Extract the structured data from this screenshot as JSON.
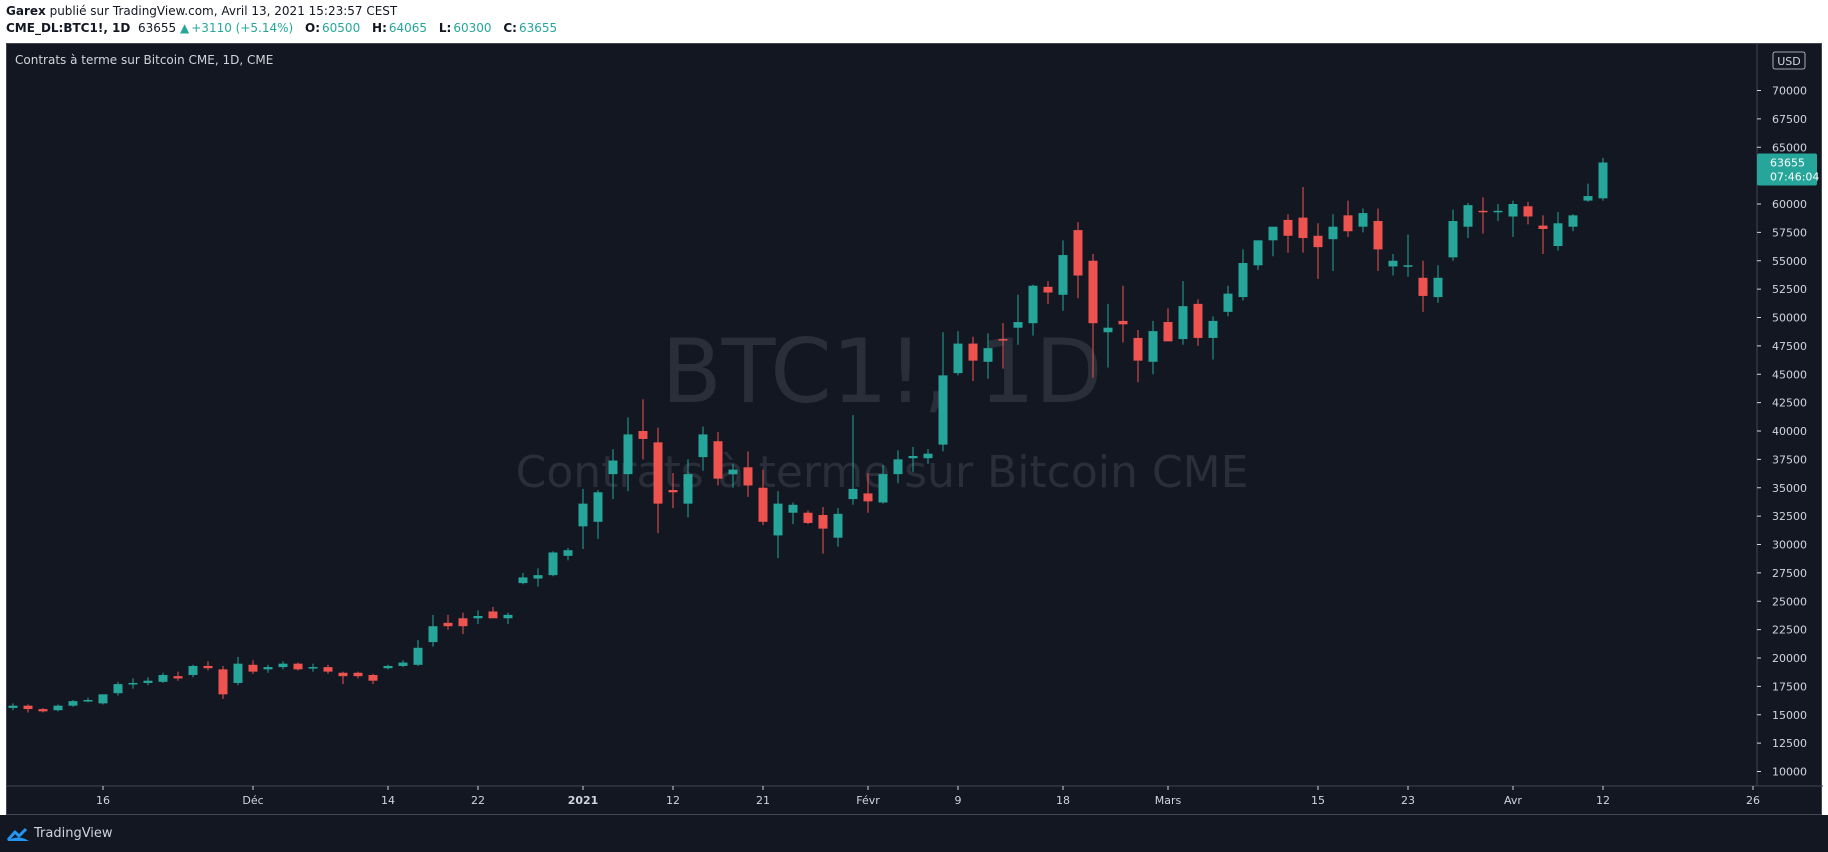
{
  "header": {
    "author": "Garex",
    "published_text": "publié sur TradingView.com, Avril 13, 2021 15:23:57 CEST",
    "symbol": "CME_DL:BTC1!, 1D",
    "last": "63655",
    "change_arrow": "▲",
    "change": "+3110 (+5.14%)",
    "o_label": "O:",
    "o_value": "60500",
    "h_label": "H:",
    "h_value": "64065",
    "l_label": "L:",
    "l_value": "60300",
    "c_label": "C:",
    "c_value": "63655"
  },
  "legend": {
    "title": "Contrats à terme sur Bitcoin CME, 1D, CME"
  },
  "watermark": {
    "symbol": "BTC1!, 1D",
    "description": "Contrats à terme sur Bitcoin CME"
  },
  "price_axis": {
    "currency": "USD",
    "last_price": "63655",
    "countdown": "07:46:04"
  },
  "footer": {
    "brand": "TradingView"
  },
  "colors": {
    "up": "#26a69a",
    "down": "#ef5350",
    "background": "#131722",
    "axis_text": "#d1d4dc",
    "watermark": "#2a2e39"
  },
  "chart_data": {
    "type": "candlestick",
    "ylim": [
      8000,
      72000
    ],
    "y_ticks": [
      10000,
      12500,
      15000,
      17500,
      20000,
      22500,
      25000,
      27500,
      30000,
      32500,
      35000,
      37500,
      40000,
      42500,
      45000,
      47500,
      50000,
      52500,
      55000,
      57500,
      60000,
      62500,
      65000,
      67500,
      70000
    ],
    "x_ticks": [
      {
        "idx": 6,
        "label": "16"
      },
      {
        "idx": 16,
        "label": "Déc"
      },
      {
        "idx": 25,
        "label": "14"
      },
      {
        "idx": 31,
        "label": "22"
      },
      {
        "idx": 38,
        "label": "2021"
      },
      {
        "idx": 44,
        "label": "12"
      },
      {
        "idx": 50,
        "label": "21"
      },
      {
        "idx": 57,
        "label": "Févr"
      },
      {
        "idx": 63,
        "label": "9"
      },
      {
        "idx": 70,
        "label": "18"
      },
      {
        "idx": 77,
        "label": "Mars"
      },
      {
        "idx": 87,
        "label": "15"
      },
      {
        "idx": 93,
        "label": "23"
      },
      {
        "idx": 100,
        "label": "Avr"
      },
      {
        "idx": 106,
        "label": "12"
      },
      {
        "idx": 116,
        "label": "26"
      }
    ],
    "candles": [
      [
        0,
        15600,
        16000,
        15400,
        15800
      ],
      [
        1,
        15800,
        15900,
        15200,
        15500
      ],
      [
        2,
        15500,
        15600,
        15200,
        15300
      ],
      [
        3,
        15400,
        15900,
        15300,
        15800
      ],
      [
        4,
        15800,
        16300,
        15700,
        16200
      ],
      [
        5,
        16200,
        16500,
        16100,
        16300
      ],
      [
        6,
        16000,
        16800,
        15900,
        16800
      ],
      [
        7,
        16900,
        17900,
        16700,
        17700
      ],
      [
        8,
        17700,
        18200,
        17300,
        17800
      ],
      [
        9,
        17800,
        18300,
        17600,
        18000
      ],
      [
        10,
        17900,
        18700,
        17800,
        18500
      ],
      [
        11,
        18400,
        18800,
        18000,
        18200
      ],
      [
        12,
        18500,
        19400,
        18300,
        19300
      ],
      [
        13,
        19300,
        19700,
        18900,
        19100
      ],
      [
        14,
        19000,
        19300,
        16400,
        16800
      ],
      [
        15,
        17800,
        20100,
        17600,
        19500
      ],
      [
        16,
        19400,
        19800,
        18600,
        18800
      ],
      [
        17,
        19000,
        19400,
        18700,
        19200
      ],
      [
        18,
        19200,
        19700,
        19000,
        19500
      ],
      [
        19,
        19500,
        19600,
        18900,
        19000
      ],
      [
        20,
        19100,
        19500,
        18800,
        19200
      ],
      [
        21,
        19200,
        19400,
        18600,
        18800
      ],
      [
        22,
        18700,
        18800,
        17700,
        18400
      ],
      [
        23,
        18700,
        18800,
        18200,
        18400
      ],
      [
        24,
        18500,
        18600,
        17700,
        18000
      ],
      [
        25,
        19100,
        19400,
        19000,
        19300
      ],
      [
        26,
        19300,
        19800,
        19200,
        19600
      ],
      [
        27,
        19400,
        21600,
        19300,
        20900
      ],
      [
        28,
        21400,
        23800,
        21000,
        22800
      ],
      [
        29,
        23100,
        23800,
        22500,
        22800
      ],
      [
        30,
        23500,
        24000,
        22100,
        22800
      ],
      [
        31,
        23500,
        24200,
        23000,
        23700
      ],
      [
        32,
        24100,
        24500,
        23600,
        23500
      ],
      [
        33,
        23500,
        24000,
        23000,
        23800
      ],
      [
        34,
        26600,
        27500,
        26500,
        27100
      ],
      [
        35,
        27000,
        27900,
        26300,
        27300
      ],
      [
        36,
        27300,
        29400,
        27200,
        29300
      ],
      [
        37,
        29000,
        29700,
        28600,
        29500
      ],
      [
        38,
        31600,
        34900,
        29600,
        33600
      ],
      [
        39,
        32000,
        34800,
        30500,
        34600
      ],
      [
        40,
        36200,
        38400,
        34000,
        37400
      ],
      [
        41,
        36200,
        41200,
        34700,
        39700
      ],
      [
        42,
        40000,
        42800,
        37500,
        39300
      ],
      [
        43,
        39000,
        40300,
        31000,
        33600
      ],
      [
        44,
        34800,
        36300,
        33200,
        34600
      ],
      [
        45,
        33600,
        37500,
        32400,
        36200
      ],
      [
        46,
        37700,
        40400,
        36500,
        39700
      ],
      [
        47,
        39100,
        39900,
        35200,
        35800
      ],
      [
        48,
        36200,
        37100,
        35000,
        36600
      ],
      [
        49,
        36800,
        38200,
        34200,
        35200
      ],
      [
        50,
        35000,
        36600,
        31700,
        32000
      ],
      [
        51,
        30800,
        34700,
        28800,
        33600
      ],
      [
        52,
        32800,
        33700,
        31800,
        33500
      ],
      [
        53,
        32800,
        33000,
        31800,
        31900
      ],
      [
        54,
        32600,
        33300,
        29200,
        31400
      ],
      [
        55,
        30600,
        33200,
        29800,
        32700
      ],
      [
        56,
        34000,
        41400,
        33500,
        34900
      ],
      [
        57,
        34500,
        36300,
        32800,
        33800
      ],
      [
        58,
        33700,
        37000,
        33600,
        36200
      ],
      [
        59,
        36200,
        38300,
        35400,
        37500
      ],
      [
        60,
        37600,
        38600,
        36400,
        37800
      ],
      [
        61,
        37600,
        38400,
        37100,
        38000
      ],
      [
        62,
        38800,
        48700,
        38200,
        44900
      ],
      [
        63,
        45100,
        48800,
        44900,
        47700
      ],
      [
        64,
        47700,
        48300,
        44400,
        46200
      ],
      [
        65,
        46100,
        48600,
        44600,
        47300
      ],
      [
        66,
        48100,
        49500,
        45500,
        48000
      ],
      [
        67,
        49100,
        52000,
        47600,
        49600
      ],
      [
        68,
        49500,
        52900,
        48400,
        52800
      ],
      [
        69,
        52700,
        53200,
        51200,
        52200
      ],
      [
        70,
        52000,
        56800,
        50600,
        55500
      ],
      [
        71,
        57700,
        58400,
        51700,
        53700
      ],
      [
        72,
        55000,
        55600,
        44700,
        49500
      ],
      [
        73,
        48700,
        51200,
        45600,
        49100
      ],
      [
        74,
        49700,
        52800,
        47800,
        49400
      ],
      [
        75,
        48200,
        48900,
        44300,
        46200
      ],
      [
        76,
        46100,
        49700,
        45000,
        48800
      ],
      [
        77,
        49600,
        50800,
        48000,
        47900
      ],
      [
        78,
        48100,
        53200,
        47600,
        51000
      ],
      [
        79,
        51200,
        51600,
        47500,
        48200
      ],
      [
        80,
        48200,
        50100,
        46300,
        49700
      ],
      [
        81,
        50500,
        52800,
        50100,
        52100
      ],
      [
        82,
        51800,
        56000,
        51500,
        54800
      ],
      [
        83,
        54600,
        56800,
        54200,
        56800
      ],
      [
        84,
        56800,
        57900,
        55400,
        58000
      ],
      [
        85,
        58600,
        59100,
        55700,
        57200
      ],
      [
        86,
        58800,
        61500,
        55700,
        57000
      ],
      [
        87,
        57200,
        58300,
        53400,
        56200
      ],
      [
        88,
        56900,
        59100,
        54100,
        58000
      ],
      [
        89,
        59000,
        60300,
        57100,
        57600
      ],
      [
        90,
        58000,
        59600,
        57500,
        59200
      ],
      [
        91,
        58500,
        59600,
        54100,
        56000
      ],
      [
        92,
        54500,
        55600,
        53700,
        55000
      ],
      [
        93,
        54600,
        57300,
        53600,
        54600
      ],
      [
        94,
        53500,
        55000,
        50500,
        51900
      ],
      [
        95,
        51800,
        54600,
        51300,
        53500
      ],
      [
        96,
        55300,
        59500,
        55000,
        58500
      ],
      [
        97,
        58000,
        60100,
        57000,
        59900
      ],
      [
        98,
        59400,
        60600,
        57400,
        59300
      ],
      [
        99,
        59400,
        60000,
        58500,
        59400
      ],
      [
        100,
        58900,
        60300,
        57100,
        60000
      ],
      [
        101,
        59800,
        60200,
        58200,
        58900
      ],
      [
        102,
        58100,
        59000,
        55600,
        57800
      ],
      [
        103,
        56300,
        59300,
        55900,
        58300
      ],
      [
        104,
        58000,
        59100,
        57600,
        59000
      ],
      [
        105,
        60300,
        61800,
        60200,
        60700
      ],
      [
        106,
        60500,
        64065,
        60300,
        63655
      ]
    ]
  }
}
